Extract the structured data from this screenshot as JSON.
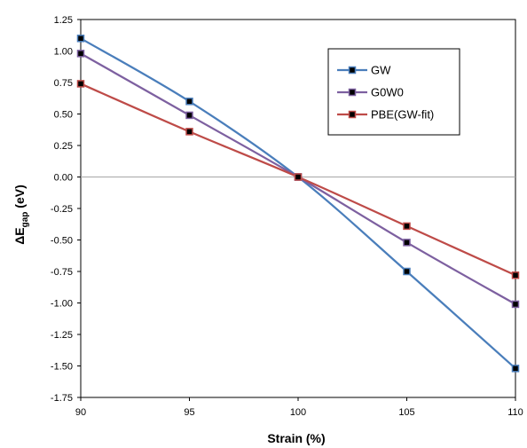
{
  "chart_data": {
    "type": "line",
    "title": "",
    "xlabel": "Strain (%)",
    "ylabel_main": "ΔE",
    "ylabel_sub": "gap",
    "ylabel_unit": " (eV)",
    "x": [
      90,
      95,
      100,
      105,
      110
    ],
    "xlim": [
      90,
      110
    ],
    "ylim": [
      -1.75,
      1.25
    ],
    "x_ticks": [
      "90",
      "95",
      "100",
      "105",
      "110"
    ],
    "y_ticks": [
      "1.25",
      "1.00",
      "0.75",
      "0.50",
      "0.25",
      "0.00",
      "-0.25",
      "-0.50",
      "-0.75",
      "-1.00",
      "-1.25",
      "-1.50",
      "-1.75"
    ],
    "y_tick_values": [
      1.25,
      1.0,
      0.75,
      0.5,
      0.25,
      0.0,
      -0.25,
      -0.5,
      -0.75,
      -1.0,
      -1.25,
      -1.5,
      -1.75
    ],
    "grid": false,
    "zero_line": true,
    "legend_position": "top-right",
    "series": [
      {
        "name": "GW",
        "color": "#4a7ebb",
        "values": [
          1.1,
          0.6,
          0.0,
          -0.75,
          -1.52
        ]
      },
      {
        "name": "G0W0",
        "color": "#7d60a0",
        "values": [
          0.98,
          0.49,
          0.0,
          -0.52,
          -1.01
        ]
      },
      {
        "name": "PBE(GW-fit)",
        "color": "#be4b48",
        "values": [
          0.74,
          0.36,
          0.0,
          -0.39,
          -0.78
        ]
      }
    ],
    "marker_color": "#000000"
  }
}
